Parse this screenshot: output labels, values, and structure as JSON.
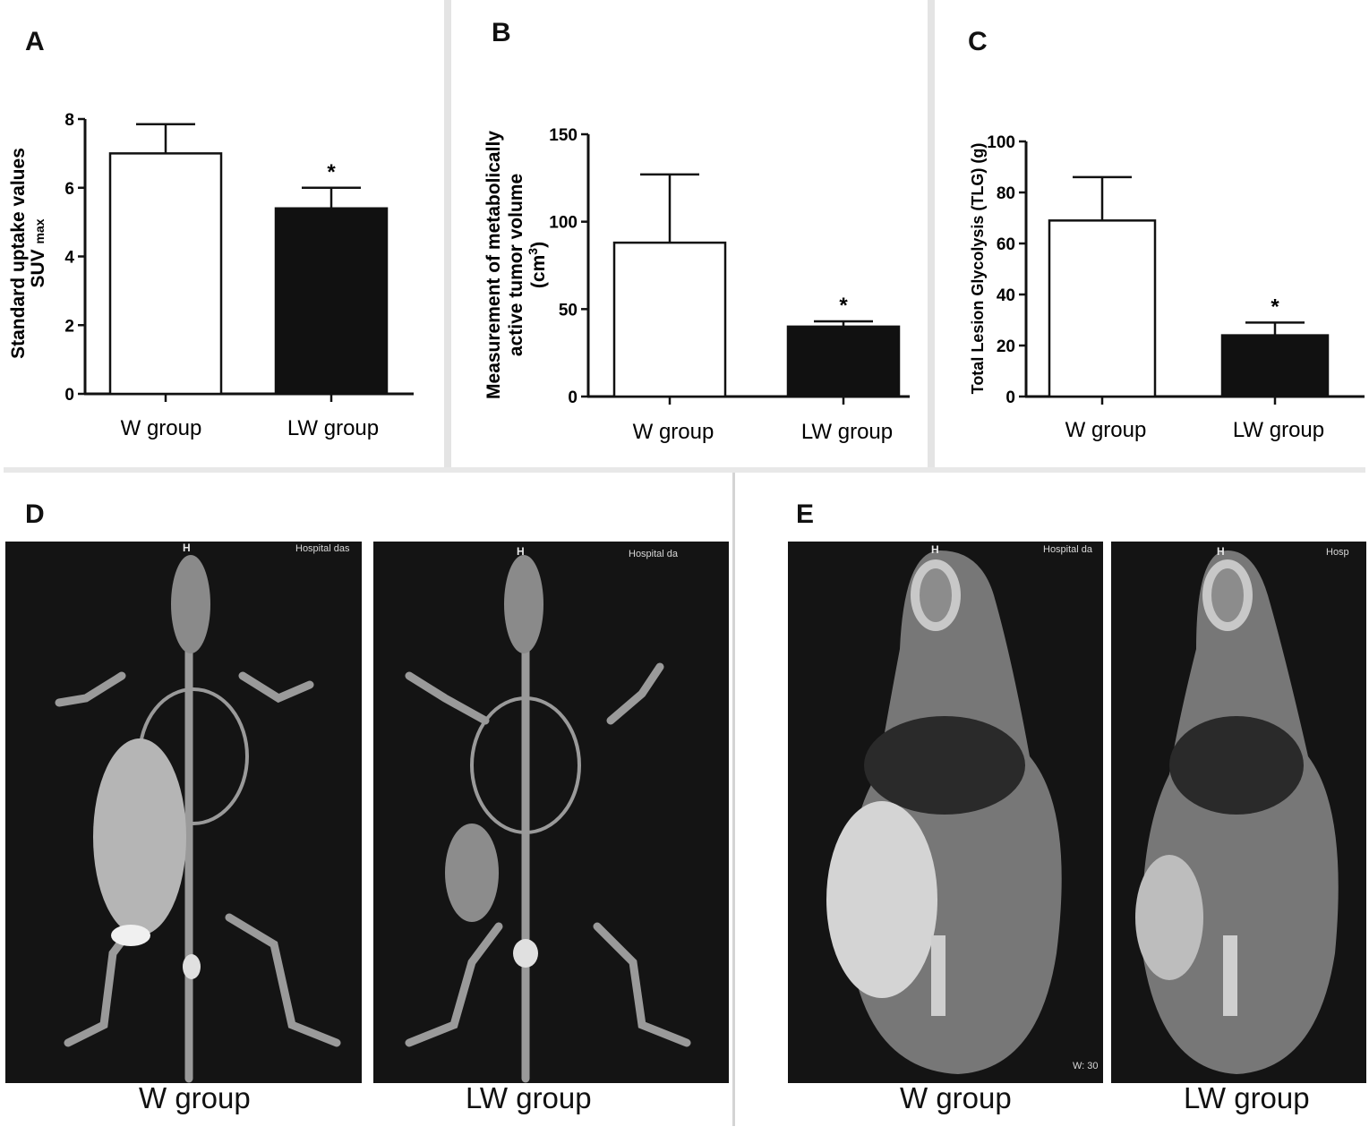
{
  "panels": {
    "A": "A",
    "B": "B",
    "C": "C",
    "D": "D",
    "E": "E"
  },
  "chart_data": [
    {
      "type": "bar",
      "panel": "A",
      "categories": [
        "W group",
        "LW group"
      ],
      "values": [
        7.0,
        5.4
      ],
      "errors": [
        0.85,
        0.6
      ],
      "significance": [
        "",
        "*"
      ],
      "ylabel_line1": "Standard uptake values",
      "ylabel_line2": "SUV",
      "ylabel_sub": "max",
      "ylim": [
        0,
        8
      ],
      "yticks": [
        0,
        2,
        4,
        6,
        8
      ],
      "colors": [
        "#ffffff",
        "#111111"
      ]
    },
    {
      "type": "bar",
      "panel": "B",
      "categories": [
        "W group",
        "LW group"
      ],
      "values": [
        88,
        40
      ],
      "errors": [
        39,
        3
      ],
      "significance": [
        "",
        "*"
      ],
      "ylabel_line1": "Measurement of metabolically",
      "ylabel_line2": "active tumor volume",
      "ylabel_line3": "(cm",
      "ylabel_sup": "3",
      "ylabel_close": ")",
      "ylim": [
        0,
        150
      ],
      "yticks": [
        0,
        50,
        100,
        150
      ],
      "colors": [
        "#ffffff",
        "#111111"
      ]
    },
    {
      "type": "bar",
      "panel": "C",
      "categories": [
        "W group",
        "LW group"
      ],
      "values": [
        69,
        24
      ],
      "errors": [
        17,
        5
      ],
      "significance": [
        "",
        "*"
      ],
      "ylabel_line1": "Total Lesion Glycolysis (TLG) (g)",
      "ylim": [
        0,
        100
      ],
      "yticks": [
        0,
        20,
        40,
        60,
        80,
        100
      ],
      "colors": [
        "#ffffff",
        "#111111"
      ]
    }
  ],
  "images": {
    "D": {
      "left": {
        "marker": "H",
        "hospital": "Hospital das",
        "caption": "W group"
      },
      "right": {
        "marker": "H",
        "hospital": "Hospital da",
        "caption": "LW group"
      }
    },
    "E": {
      "left": {
        "marker": "H",
        "hospital": "Hospital da",
        "caption": "W group",
        "corner": "W: 30"
      },
      "right": {
        "marker": "H",
        "hospital": "Hosp",
        "caption": "LW group"
      }
    }
  }
}
